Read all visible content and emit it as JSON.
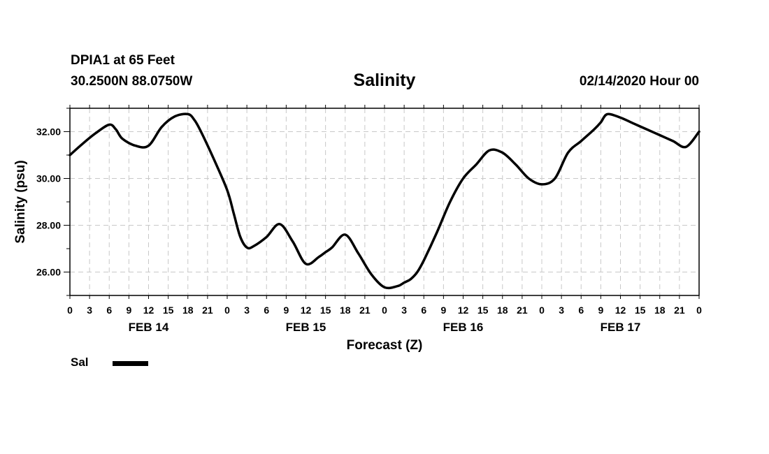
{
  "header": {
    "station": "DPIA1 at 65 Feet",
    "coordinates": "30.2500N 88.0750W",
    "run": "02/14/2020 Hour 00"
  },
  "legend": {
    "label": "Sal",
    "color": "#000000"
  },
  "chart_data": {
    "type": "line",
    "title": "Salinity",
    "xlabel": "Forecast (Z)",
    "ylabel": "Salinity (psu)",
    "x_unit": "hours from 02/14/2020 00Z",
    "xlim": [
      0,
      96
    ],
    "ylim": [
      25.0,
      33.0
    ],
    "grid": true,
    "legend_position": "bottom-left",
    "x_tick_labels": [
      "0",
      "3",
      "6",
      "9",
      "12",
      "15",
      "18",
      "21",
      "0",
      "3",
      "6",
      "9",
      "12",
      "15",
      "18",
      "21",
      "0",
      "3",
      "6",
      "9",
      "12",
      "15",
      "18",
      "21",
      "0",
      "3",
      "6",
      "9",
      "12",
      "15",
      "18",
      "21",
      "0"
    ],
    "day_labels": [
      {
        "label": "FEB 14",
        "hour": 12
      },
      {
        "label": "FEB 15",
        "hour": 36
      },
      {
        "label": "FEB 16",
        "hour": 60
      },
      {
        "label": "FEB 17",
        "hour": 84
      }
    ],
    "y_ticks": [
      {
        "value": 26,
        "label": "26.00"
      },
      {
        "value": 28,
        "label": "28.00"
      },
      {
        "value": 30,
        "label": "30.00"
      },
      {
        "value": 32,
        "label": "32.00"
      }
    ],
    "series": [
      {
        "name": "Sal",
        "x": [
          0,
          2,
          4,
          6,
          7,
          8,
          10,
          12,
          14,
          16,
          18,
          19,
          20,
          22,
          24,
          25,
          26,
          27,
          28,
          30,
          32,
          34,
          36,
          38,
          39,
          40,
          42,
          44,
          46,
          48,
          50,
          51,
          52,
          53,
          54,
          56,
          58,
          60,
          62,
          64,
          66,
          68,
          70,
          72,
          74,
          76,
          78,
          80,
          81,
          82,
          84,
          86,
          88,
          90,
          92,
          94,
          96
        ],
        "y": [
          31.0,
          31.5,
          31.95,
          32.3,
          32.1,
          31.7,
          31.4,
          31.4,
          32.2,
          32.65,
          32.75,
          32.5,
          32.0,
          30.8,
          29.5,
          28.5,
          27.5,
          27.05,
          27.1,
          27.5,
          28.05,
          27.3,
          26.35,
          26.65,
          26.85,
          27.05,
          27.6,
          26.8,
          25.9,
          25.35,
          25.4,
          25.55,
          25.7,
          26.0,
          26.5,
          27.7,
          29.0,
          30.0,
          30.6,
          31.2,
          31.1,
          30.6,
          30.0,
          29.75,
          30.0,
          31.1,
          31.6,
          32.1,
          32.4,
          32.75,
          32.6,
          32.35,
          32.1,
          31.85,
          31.6,
          31.35,
          32.0
        ]
      }
    ]
  }
}
